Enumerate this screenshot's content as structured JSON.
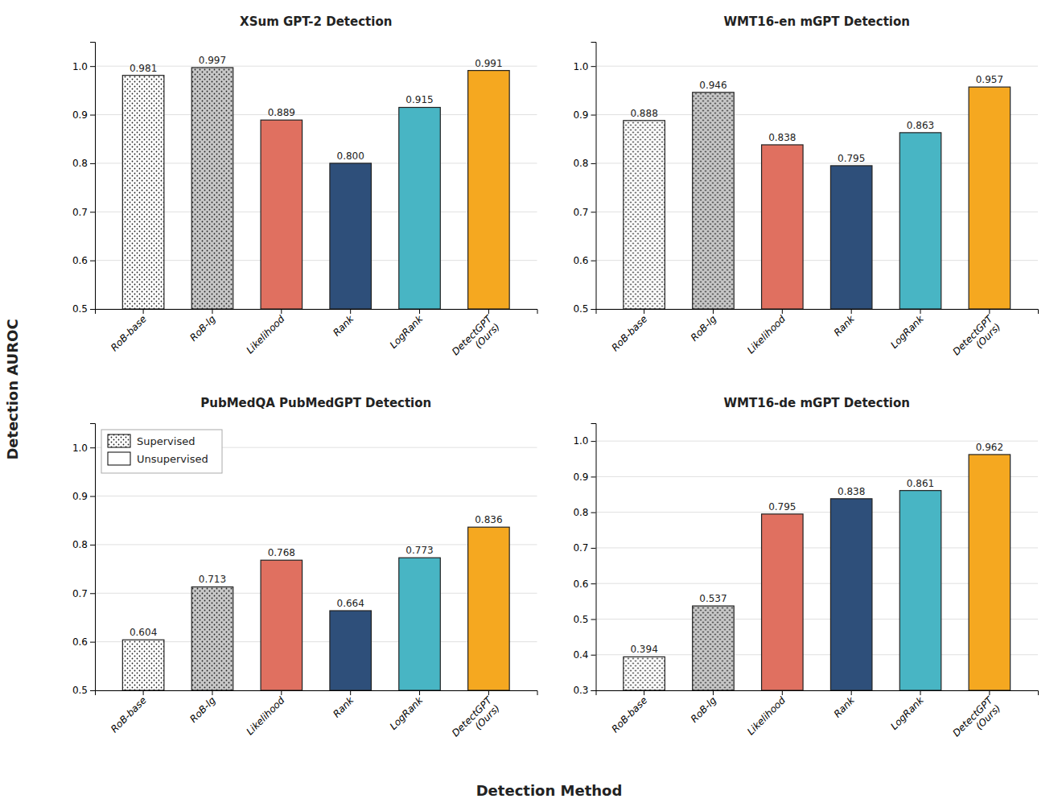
{
  "chart_data": [
    {
      "type": "bar",
      "title": "XSum GPT-2 Detection",
      "categories": [
        "RoB-base",
        "RoB-lg",
        "Likelihood",
        "Rank",
        "LogRank",
        "DetectGPT\n(Ours)"
      ],
      "series": [
        {
          "name": "Supervised",
          "values": [
            0.981,
            0.997,
            null,
            null,
            null,
            null
          ],
          "value_labels": [
            "0.981",
            "0.997",
            null,
            null,
            null,
            null
          ]
        },
        {
          "name": "Unsupervised",
          "values": [
            null,
            null,
            0.889,
            0.8,
            0.915,
            0.991
          ],
          "value_labels": [
            null,
            null,
            "0.889",
            "0.800",
            "0.915",
            "0.991"
          ]
        }
      ],
      "colors": [
        "#ffffff",
        "#c8c8c8",
        "#e07060",
        "#2e4f7a",
        "#48b5c4",
        "#f5a820"
      ],
      "ylim": [
        0.5,
        1.05
      ],
      "yticks": [
        0.5,
        0.6,
        0.7,
        0.8,
        0.9,
        {
          "value": 1.0,
          "label": "1.0"
        }
      ],
      "grid": true,
      "stacked": true,
      "data_labels": true
    },
    {
      "type": "bar",
      "title": "WMT16-en mGPT Detection",
      "categories": [
        "RoB-base",
        "RoB-lg",
        "Likelihood",
        "Rank",
        "LogRank",
        "DetectGPT\n(Ours)"
      ],
      "series": [
        {
          "name": "Supervised",
          "values": [
            0.888,
            0.946,
            null,
            null,
            null,
            null
          ],
          "value_labels": [
            "0.888",
            "0.946",
            null,
            null,
            null,
            null
          ]
        },
        {
          "name": "Unsupervised",
          "values": [
            null,
            null,
            0.838,
            0.795,
            0.863,
            0.957
          ],
          "value_labels": [
            null,
            null,
            "0.838",
            "0.795",
            "0.863",
            "0.957"
          ]
        }
      ],
      "colors": [
        "#ffffff",
        "#c8c8c8",
        "#e07060",
        "#2e4f7a",
        "#48b5c4",
        "#f5a820"
      ],
      "ylim": [
        0.5,
        1.05
      ],
      "yticks": [
        0.5,
        0.6,
        0.7,
        0.8,
        0.9,
        {
          "value": 1.0,
          "label": "1.0"
        }
      ],
      "grid": true,
      "stacked": true,
      "data_labels": true
    },
    {
      "type": "bar",
      "title": "PubMedQA PubMedGPT Detection",
      "categories": [
        "RoB-base",
        "RoB-lg",
        "Likelihood",
        "Rank",
        "LogRank",
        "DetectGPT\n(Ours)"
      ],
      "series": [
        {
          "name": "Supervised",
          "values": [
            0.604,
            0.713,
            null,
            null,
            null,
            null
          ],
          "value_labels": [
            "0.604",
            "0.713",
            null,
            null,
            null,
            null
          ]
        },
        {
          "name": "Unsupervised",
          "values": [
            null,
            null,
            0.768,
            0.664,
            0.773,
            0.836
          ],
          "value_labels": [
            null,
            null,
            "0.768",
            "0.664",
            "0.773",
            "0.836"
          ]
        }
      ],
      "colors": [
        "#ffffff",
        "#c8c8c8",
        "#e07060",
        "#2e4f7a",
        "#48b5c4",
        "#f5a820"
      ],
      "ylim": [
        0.5,
        1.05
      ],
      "yticks": [
        0.5,
        0.6,
        0.7,
        0.8,
        0.9,
        {
          "value": 1.0,
          "label": "1.0"
        }
      ],
      "grid": true,
      "stacked": true,
      "data_labels": true,
      "legend": "upper left"
    },
    {
      "type": "bar",
      "title": "WMT16-de mGPT Detection",
      "categories": [
        "RoB-base",
        "RoB-lg",
        "Likelihood",
        "Rank",
        "LogRank",
        "DetectGPT\n(Ours)"
      ],
      "series": [
        {
          "name": "Supervised",
          "values": [
            0.394,
            0.537,
            null,
            null,
            null,
            null
          ],
          "value_labels": [
            "0.394",
            "0.537",
            null,
            null,
            null,
            null
          ]
        },
        {
          "name": "Unsupervised",
          "values": [
            null,
            null,
            0.795,
            0.838,
            0.861,
            0.962
          ],
          "value_labels": [
            null,
            null,
            "0.795",
            "0.838",
            "0.861",
            "0.962"
          ]
        }
      ],
      "colors": [
        "#ffffff",
        "#c8c8c8",
        "#e07060",
        "#2e4f7a",
        "#48b5c4",
        "#f5a820"
      ],
      "ylim": [
        0.3,
        1.05
      ],
      "yticks": [
        0.3,
        0.4,
        0.5,
        0.6,
        0.7,
        0.8,
        0.9,
        {
          "value": 1.0,
          "label": "1.0"
        }
      ],
      "grid": true,
      "stacked": true,
      "data_labels": true
    }
  ],
  "ylabel": "Detection AUROC",
  "xlabel": "Detection Method"
}
